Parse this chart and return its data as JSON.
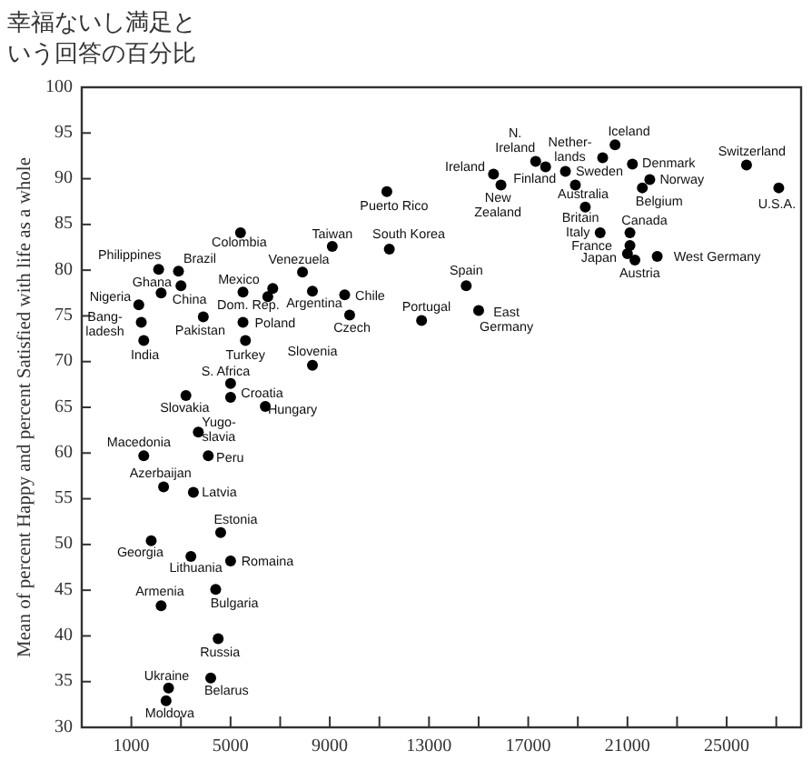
{
  "chart_data": {
    "type": "scatter",
    "title": "幸福ないし満足という回答の百分比",
    "ylabel": "Mean of percent Happy and percent Satisfied with life as a whole",
    "color": "#000000",
    "marker": "circle",
    "grid": false,
    "xlim": [
      -1000,
      28000
    ],
    "ylim": [
      30,
      100
    ],
    "xticks": [
      1000,
      {
        "value": 3000,
        "label": null
      },
      5000,
      {
        "value": 7000,
        "label": null
      },
      9000,
      {
        "value": 11000,
        "label": null
      },
      13000,
      {
        "value": 15000,
        "label": null
      },
      17000,
      {
        "value": 19000,
        "label": null
      },
      21000,
      {
        "value": 23000,
        "label": null
      },
      25000,
      {
        "value": 27000,
        "label": null
      }
    ],
    "yticks": [
      30,
      35,
      40,
      45,
      50,
      55,
      60,
      65,
      70,
      75,
      80,
      85,
      90,
      95,
      100
    ],
    "x": [
      2100,
      2900,
      2200,
      3000,
      1300,
      1400,
      1500,
      3900,
      5400,
      5500,
      6500,
      6700,
      7900,
      8300,
      9600,
      9100,
      11400,
      11300,
      14500,
      12700,
      9800,
      5500,
      5600,
      8300,
      5000,
      5000,
      3200,
      6400,
      3700,
      1500,
      4100,
      2300,
      3500,
      4600,
      1800,
      3400,
      5000,
      4400,
      2200,
      4500,
      4200,
      2500,
      2400,
      20500,
      17300,
      15600,
      17700,
      15900,
      20000,
      18500,
      21200,
      21900,
      21600,
      18900,
      19300,
      19900,
      21100,
      21100,
      21000,
      21300,
      22200,
      25800,
      27100,
      15000
    ],
    "values": [
      80.1,
      79.9,
      77.5,
      78.3,
      76.2,
      74.3,
      72.3,
      74.9,
      84.1,
      77.6,
      77.1,
      78.0,
      79.8,
      77.7,
      77.3,
      82.6,
      82.3,
      88.6,
      78.3,
      74.5,
      75.1,
      74.3,
      72.3,
      69.6,
      67.6,
      66.1,
      66.3,
      65.1,
      62.3,
      59.7,
      59.7,
      56.3,
      55.7,
      51.3,
      50.4,
      48.7,
      48.2,
      45.1,
      43.3,
      39.7,
      35.4,
      34.3,
      32.9,
      93.7,
      91.9,
      90.5,
      91.3,
      89.3,
      92.3,
      90.8,
      91.6,
      89.9,
      89.0,
      89.3,
      86.9,
      84.1,
      84.1,
      82.7,
      81.8,
      81.1,
      81.5,
      91.5,
      89.0,
      75.6
    ],
    "annotations": [
      {
        "text": "Philippines",
        "x": 2100,
        "y": 80.1
      },
      {
        "text": "Brazil",
        "x": 2900,
        "y": 79.9
      },
      {
        "text": "Ghana",
        "x": 2200,
        "y": 77.5
      },
      {
        "text": "China",
        "x": 3000,
        "y": 78.3
      },
      {
        "text": "Nigeria",
        "x": 1300,
        "y": 76.2
      },
      {
        "text": "Bang-\nladesh",
        "x": 1400,
        "y": 74.3
      },
      {
        "text": "India",
        "x": 1500,
        "y": 72.3
      },
      {
        "text": "Pakistan",
        "x": 3900,
        "y": 74.9
      },
      {
        "text": "Colombia",
        "x": 5400,
        "y": 84.1
      },
      {
        "text": "Mexico",
        "x": 5500,
        "y": 77.6
      },
      {
        "text": "Dom. Rep.",
        "x": 6500,
        "y": 77.1
      },
      {
        "text": "Venezuela",
        "x": 7900,
        "y": 79.8
      },
      {
        "text": "Argentina",
        "x": 8300,
        "y": 77.7
      },
      {
        "text": "Chile",
        "x": 9600,
        "y": 77.3
      },
      {
        "text": "Taiwan",
        "x": 9100,
        "y": 82.6
      },
      {
        "text": "South Korea",
        "x": 11400,
        "y": 82.3
      },
      {
        "text": "Puerto Rico",
        "x": 11300,
        "y": 88.6
      },
      {
        "text": "Spain",
        "x": 14500,
        "y": 78.3
      },
      {
        "text": "Portugal",
        "x": 12700,
        "y": 74.5
      },
      {
        "text": "Czech",
        "x": 9800,
        "y": 75.1
      },
      {
        "text": "Poland",
        "x": 5500,
        "y": 74.3
      },
      {
        "text": "Turkey",
        "x": 5600,
        "y": 72.3
      },
      {
        "text": "Slovenia",
        "x": 8300,
        "y": 69.6
      },
      {
        "text": "S. Africa",
        "x": 5000,
        "y": 67.6
      },
      {
        "text": "Croatia",
        "x": 5000,
        "y": 66.1
      },
      {
        "text": "Slovakia",
        "x": 3200,
        "y": 66.3
      },
      {
        "text": "Hungary",
        "x": 6400,
        "y": 65.1
      },
      {
        "text": "Yugo-\nslavia",
        "x": 3700,
        "y": 62.3
      },
      {
        "text": "Macedonia",
        "x": 1500,
        "y": 59.7
      },
      {
        "text": "Peru",
        "x": 4100,
        "y": 59.7
      },
      {
        "text": "Azerbaijan",
        "x": 2300,
        "y": 56.3
      },
      {
        "text": "Latvia",
        "x": 3500,
        "y": 55.7
      },
      {
        "text": "Estonia",
        "x": 4600,
        "y": 51.3
      },
      {
        "text": "Georgia",
        "x": 1800,
        "y": 50.4
      },
      {
        "text": "Lithuania",
        "x": 3400,
        "y": 48.7
      },
      {
        "text": "Romaina",
        "x": 5000,
        "y": 48.2
      },
      {
        "text": "Bulgaria",
        "x": 4400,
        "y": 45.1
      },
      {
        "text": "Armenia",
        "x": 2200,
        "y": 43.3
      },
      {
        "text": "Russia",
        "x": 4500,
        "y": 39.7
      },
      {
        "text": "Ukraine",
        "x": 2500,
        "y": 34.3
      },
      {
        "text": "Belarus",
        "x": 4200,
        "y": 35.4
      },
      {
        "text": "Moldova",
        "x": 2400,
        "y": 32.9
      },
      {
        "text": "Iceland",
        "x": 20500,
        "y": 93.7
      },
      {
        "text": "N.\nIreland",
        "x": 17300,
        "y": 91.9
      },
      {
        "text": "Ireland",
        "x": 15600,
        "y": 90.5
      },
      {
        "text": "Finland",
        "x": 17700,
        "y": 91.3
      },
      {
        "text": "New\nZealand",
        "x": 15900,
        "y": 89.3
      },
      {
        "text": "Nether-\nlands",
        "x": 20000,
        "y": 92.3
      },
      {
        "text": "Sweden",
        "x": 18500,
        "y": 90.8
      },
      {
        "text": "Denmark",
        "x": 21200,
        "y": 91.6
      },
      {
        "text": "Norway",
        "x": 21900,
        "y": 89.9
      },
      {
        "text": "Belgium",
        "x": 21600,
        "y": 89.0
      },
      {
        "text": "Australia",
        "x": 18900,
        "y": 89.3
      },
      {
        "text": "Britain",
        "x": 19300,
        "y": 86.9
      },
      {
        "text": "Italy",
        "x": 19900,
        "y": 84.1
      },
      {
        "text": "Canada",
        "x": 21100,
        "y": 84.1
      },
      {
        "text": "France",
        "x": 21100,
        "y": 82.7
      },
      {
        "text": "Japan",
        "x": 21000,
        "y": 81.8
      },
      {
        "text": "Austria",
        "x": 21300,
        "y": 81.1
      },
      {
        "text": "West Germany",
        "x": 22200,
        "y": 81.5
      },
      {
        "text": "Switzerland",
        "x": 25800,
        "y": 91.5
      },
      {
        "text": "U.S.A.",
        "x": 27100,
        "y": 89.0
      },
      {
        "text": "East\nGermany",
        "x": 15000,
        "y": 75.6
      }
    ]
  }
}
